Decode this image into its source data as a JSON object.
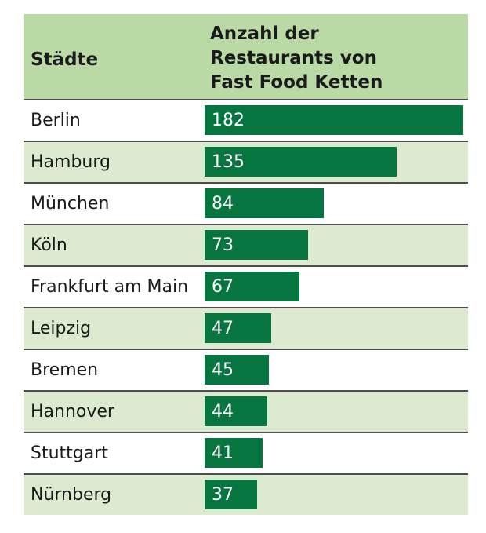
{
  "header": {
    "city_label": "Städte",
    "value_label_lines": [
      "Anzahl der",
      "Restaurants von",
      "Fast Food Ketten"
    ]
  },
  "colors": {
    "header_bg": "#b9d9a5",
    "row_alt_bg": "#dcebd0",
    "bar": "#067540",
    "divider": "#4d4d4d"
  },
  "chart_data": {
    "type": "bar",
    "orientation": "horizontal",
    "title": "",
    "xlabel": "Städte",
    "ylabel": "Anzahl der Restaurants von Fast Food Ketten",
    "categories": [
      "Berlin",
      "Hamburg",
      "München",
      "Köln",
      "Frankfurt am Main",
      "Leipzig",
      "Bremen",
      "Hannover",
      "Stuttgart",
      "Nürnberg"
    ],
    "values": [
      182,
      135,
      84,
      73,
      67,
      47,
      45,
      44,
      41,
      37
    ],
    "xlim": [
      0,
      182
    ],
    "grid": false,
    "legend": "none"
  }
}
